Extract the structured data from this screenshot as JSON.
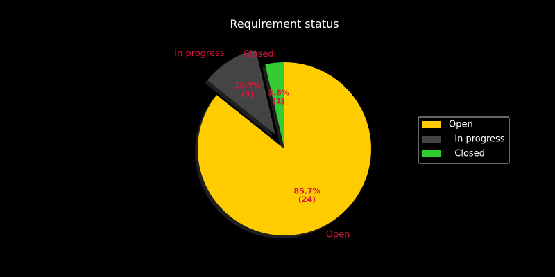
{
  "chart_data": {
    "type": "pie",
    "title": "Requirement status",
    "slices": [
      {
        "label": "Open",
        "legend": "Open",
        "value": 24,
        "percent_label": "85.7%",
        "count_label": "(24)",
        "color": "#ffcc00",
        "exploded": false
      },
      {
        "label": "In progress",
        "legend": "  In progress",
        "value": 3,
        "percent_label": "10.7%",
        "count_label": "(3)",
        "color": "#444444",
        "exploded": true
      },
      {
        "label": "Closed",
        "legend": "  Closed",
        "value": 1,
        "percent_label": "3.6%",
        "count_label": "(1)",
        "color": "#33cc33",
        "exploded": false
      }
    ],
    "start_angle_deg": 90,
    "direction": "clockwise",
    "shadow": true,
    "legend_position": "right",
    "colors": {
      "background": "#000000",
      "title": "#ffffff",
      "labels": "#dc143c",
      "legend_text": "#ffffff",
      "legend_border": "#cccccc"
    }
  }
}
